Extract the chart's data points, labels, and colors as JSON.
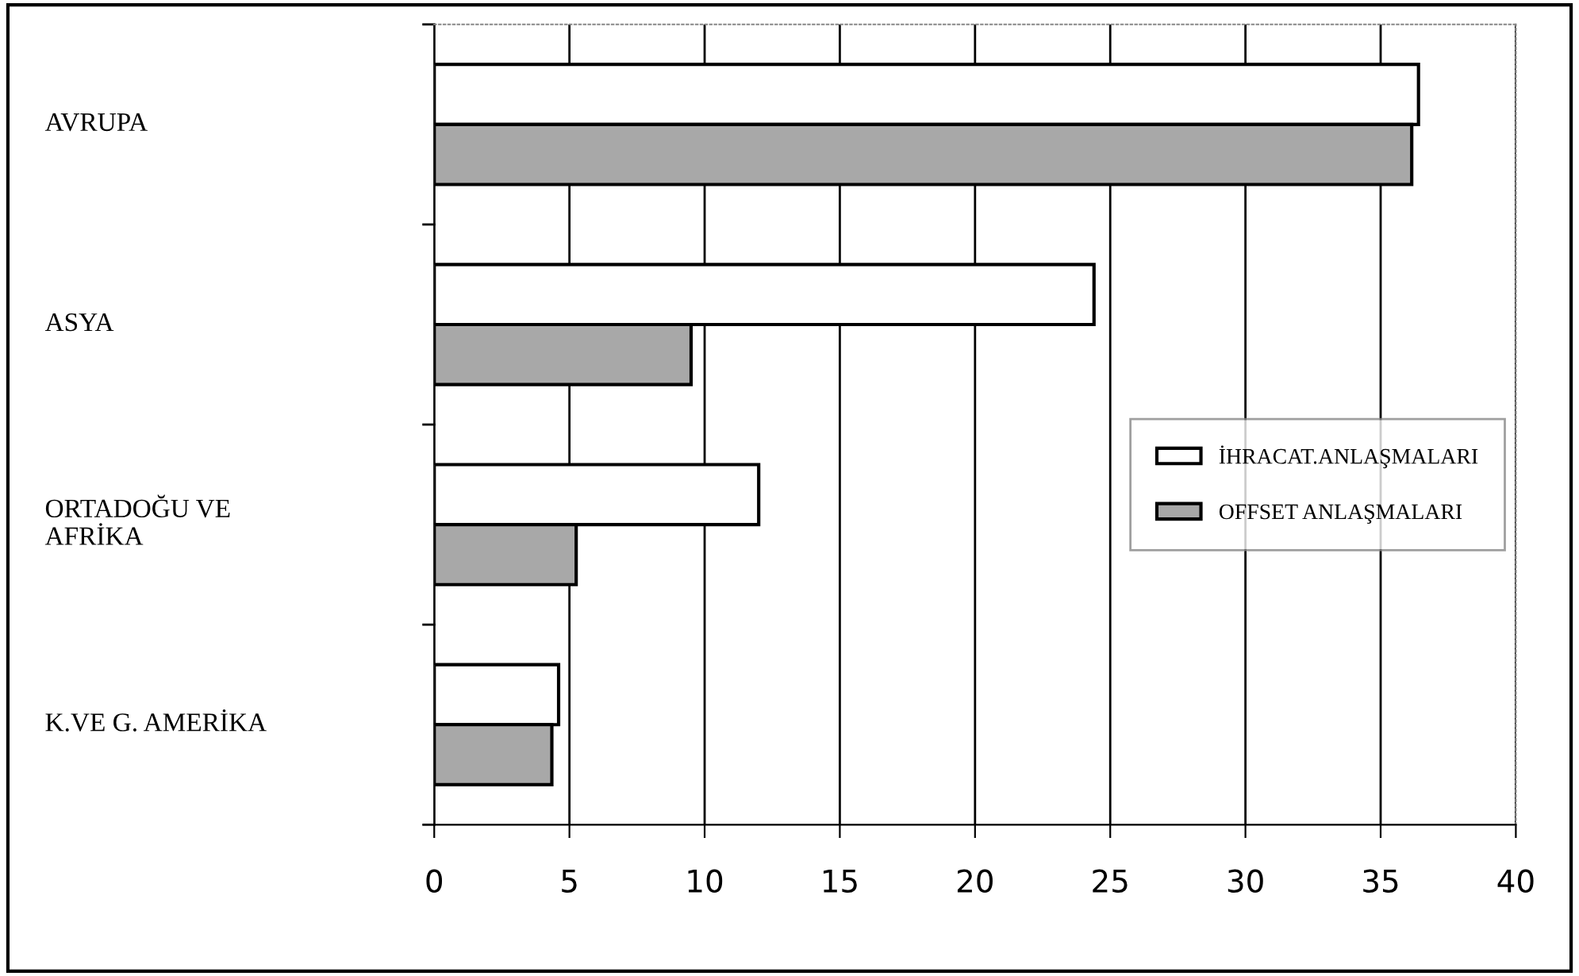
{
  "chart_data": {
    "type": "bar",
    "orientation": "horizontal",
    "categories": [
      "AVRUPA",
      "ASYA",
      "ORTADOĞU VE\nAFRİKA",
      "K.VE G. AMERİKA"
    ],
    "series": [
      {
        "name": "İHRACAT.ANLAŞMALARI",
        "color": "#ffffff",
        "values": [
          36.4,
          24.4,
          12.0,
          4.6
        ]
      },
      {
        "name": "OFFSET ANLAŞMALARI",
        "color": "#a8a8a8",
        "values": [
          36.15,
          9.5,
          5.25,
          4.35
        ]
      }
    ],
    "xlim": [
      0,
      40
    ],
    "xticks": [
      0,
      5,
      10,
      15,
      20,
      25,
      30,
      35,
      40
    ],
    "grid": "x",
    "legend": "center right"
  }
}
